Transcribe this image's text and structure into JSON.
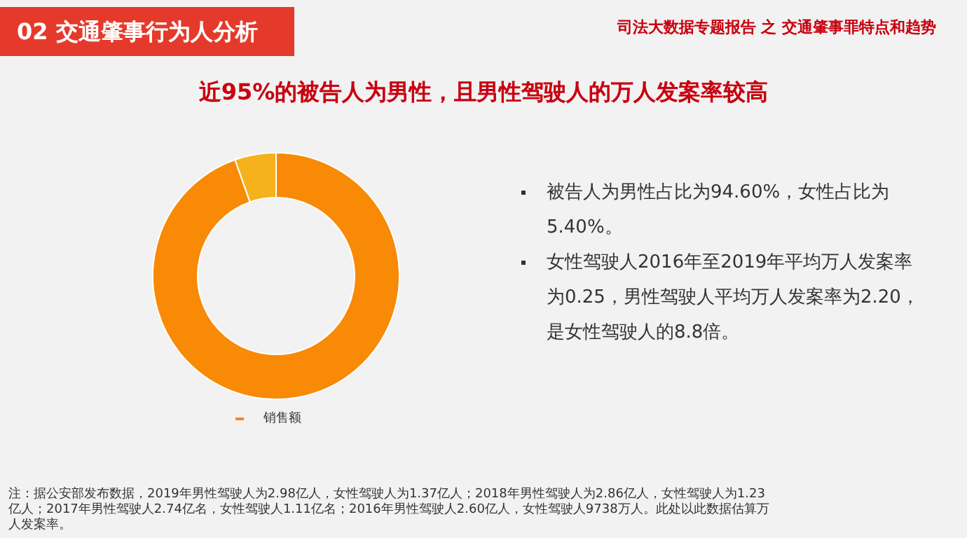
{
  "chart_data": {
    "type": "donut",
    "title": "近95%的被告人为男性，且男性驾驶人的万人发案率较高",
    "subtitle": "02  交通肇事行为人分析",
    "categories": [
      null,
      null
    ],
    "series": [
      {
        "name": "销售额",
        "values": [
          94.6,
          5.4
        ],
        "colors": [
          "#f88a06",
          "#f5b21c"
        ]
      }
    ],
    "legend": "bottom",
    "annotations": [
      "司法大数据专题报告 之 交通肇事罪特点和趋势",
      "被告人为男性占比为94.60%，女性占比为5.40%。",
      "女性驾驶人2016年至2019年平均万人发案率为0.25，男性驾驶人平均万人发案率为2.20，是女性驾驶人的8.8倍。",
      "注：据公安部发布数据，2019年男性驾驶人为2.98亿人，女性驾驶人为1.37亿人；2018年男性驾驶人为2.86亿人，女性驾驶人为1.23亿人；2017年男性驾驶人2.74亿名，女性驾驶人1.11亿名；2016年男性驾驶人2.60亿人，女性驾驶人9738万人。此处以此数据估算万人发案率。"
    ]
  }
}
